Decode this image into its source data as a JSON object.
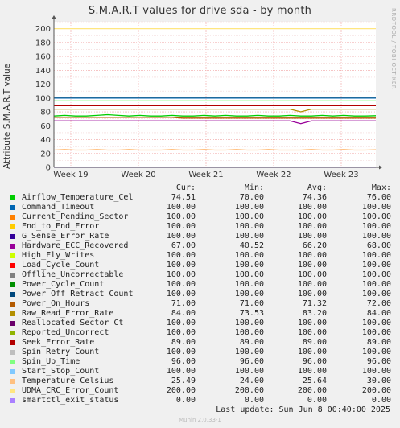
{
  "title": "S.M.A.R.T values for drive sda - by month",
  "side_tag": "RRDTOOL / TOBI OETIKER",
  "ylabel": "Attribute S.M.A.R.T value",
  "legend_headers": {
    "cur": "Cur:",
    "min": "Min:",
    "avg": "Avg:",
    "max": "Max:"
  },
  "last_update": "Last update:  Sun Jun  8 00:40:00 2025",
  "footer": "Munin 2.0.33-1",
  "chart_data": {
    "type": "line",
    "title": "S.M.A.R.T values for drive sda - by month",
    "ylabel": "Attribute S.M.A.R.T value",
    "ylim": [
      0,
      210
    ],
    "yticks": [
      0,
      20,
      40,
      60,
      80,
      100,
      120,
      140,
      160,
      180,
      200
    ],
    "x_ticks": [
      "Week 19",
      "Week 20",
      "Week 21",
      "Week 22",
      "Week 23"
    ],
    "grid": true,
    "series": [
      {
        "name": "Airflow_Temperature_Cel",
        "color": "#00cc00",
        "cur": "74.51",
        "min": "70.00",
        "avg": "74.36",
        "max": "76.00",
        "values": [
          74,
          75,
          74,
          74,
          75,
          76,
          75,
          74,
          75,
          74,
          74,
          75,
          74,
          74,
          75,
          74,
          75,
          74,
          74,
          75,
          74,
          74,
          75,
          74,
          74,
          75,
          74,
          75,
          74,
          74,
          74.5
        ]
      },
      {
        "name": "Command_Timeout",
        "color": "#0066b3",
        "cur": "100.00",
        "min": "100.00",
        "avg": "100.00",
        "max": "100.00",
        "values": [
          100
        ]
      },
      {
        "name": "Current_Pending_Sector",
        "color": "#ff8000",
        "cur": "100.00",
        "min": "100.00",
        "avg": "100.00",
        "max": "100.00",
        "values": [
          100
        ]
      },
      {
        "name": "End_to_End_Error",
        "color": "#ffcc00",
        "cur": "100.00",
        "min": "100.00",
        "avg": "100.00",
        "max": "100.00",
        "values": [
          100
        ]
      },
      {
        "name": "G_Sense_Error_Rate",
        "color": "#330099",
        "cur": "100.00",
        "min": "100.00",
        "avg": "100.00",
        "max": "100.00",
        "values": [
          100
        ]
      },
      {
        "name": "Hardware_ECC_Recovered",
        "color": "#990099",
        "cur": "67.00",
        "min": "40.52",
        "avg": "66.20",
        "max": "68.00",
        "values": [
          67,
          67,
          67,
          67,
          67,
          67,
          67,
          67,
          67,
          67,
          67,
          67,
          67,
          67,
          67,
          67,
          67,
          67,
          67,
          67,
          67,
          67,
          67,
          63,
          67,
          67,
          67,
          67,
          67,
          67,
          67
        ]
      },
      {
        "name": "High_Fly_Writes",
        "color": "#ccff00",
        "cur": "100.00",
        "min": "100.00",
        "avg": "100.00",
        "max": "100.00",
        "values": [
          100
        ]
      },
      {
        "name": "Load_Cycle_Count",
        "color": "#ff0000",
        "cur": "100.00",
        "min": "100.00",
        "avg": "100.00",
        "max": "100.00",
        "values": [
          100
        ]
      },
      {
        "name": "Offline_Uncorrectable",
        "color": "#808080",
        "cur": "100.00",
        "min": "100.00",
        "avg": "100.00",
        "max": "100.00",
        "values": [
          100
        ]
      },
      {
        "name": "Power_Cycle_Count",
        "color": "#008f00",
        "cur": "100.00",
        "min": "100.00",
        "avg": "100.00",
        "max": "100.00",
        "values": [
          100
        ]
      },
      {
        "name": "Power_Off_Retract_Count",
        "color": "#00487d",
        "cur": "100.00",
        "min": "100.00",
        "avg": "100.00",
        "max": "100.00",
        "values": [
          100
        ]
      },
      {
        "name": "Power_On_Hours",
        "color": "#b35a00",
        "cur": "71.00",
        "min": "71.00",
        "avg": "71.32",
        "max": "72.00",
        "values": [
          72,
          72,
          72,
          72,
          72,
          72,
          72,
          72,
          72,
          72,
          72,
          72,
          71,
          71,
          71,
          71,
          71,
          71,
          71,
          71,
          71,
          71,
          71,
          71,
          71,
          71,
          71,
          71,
          71,
          71,
          71
        ]
      },
      {
        "name": "Raw_Read_Error_Rate",
        "color": "#b38f00",
        "cur": "84.00",
        "min": "73.53",
        "avg": "83.20",
        "max": "84.00",
        "values": [
          84,
          84,
          84,
          84,
          84,
          84,
          84,
          84,
          84,
          84,
          84,
          84,
          84,
          84,
          84,
          84,
          84,
          84,
          84,
          84,
          84,
          84,
          84,
          80,
          84,
          84,
          84,
          84,
          84,
          84,
          84
        ]
      },
      {
        "name": "Reallocated_Sector_Ct",
        "color": "#6b006b",
        "cur": "100.00",
        "min": "100.00",
        "avg": "100.00",
        "max": "100.00",
        "values": [
          100
        ]
      },
      {
        "name": "Reported_Uncorrect",
        "color": "#8fb300",
        "cur": "100.00",
        "min": "100.00",
        "avg": "100.00",
        "max": "100.00",
        "values": [
          100
        ]
      },
      {
        "name": "Seek_Error_Rate",
        "color": "#b30000",
        "cur": "89.00",
        "min": "89.00",
        "avg": "89.00",
        "max": "89.00",
        "values": [
          89
        ]
      },
      {
        "name": "Spin_Retry_Count",
        "color": "#bebebe",
        "cur": "100.00",
        "min": "100.00",
        "avg": "100.00",
        "max": "100.00",
        "values": [
          100
        ]
      },
      {
        "name": "Spin_Up_Time",
        "color": "#80ff80",
        "cur": "96.00",
        "min": "96.00",
        "avg": "96.00",
        "max": "96.00",
        "values": [
          96
        ]
      },
      {
        "name": "Start_Stop_Count",
        "color": "#80c9ff",
        "cur": "100.00",
        "min": "100.00",
        "avg": "100.00",
        "max": "100.00",
        "values": [
          100
        ]
      },
      {
        "name": "Temperature_Celsius",
        "color": "#ffc080",
        "cur": "25.49",
        "min": "24.00",
        "avg": "25.64",
        "max": "30.00",
        "values": [
          25,
          26,
          25,
          25,
          26,
          25,
          25,
          26,
          25,
          25,
          25,
          26,
          25,
          25,
          26,
          25,
          25,
          26,
          25,
          25,
          26,
          25,
          25,
          25,
          26,
          25,
          25,
          26,
          25,
          25,
          25.5
        ]
      },
      {
        "name": "UDMA_CRC_Error_Count",
        "color": "#ffe680",
        "cur": "200.00",
        "min": "200.00",
        "avg": "200.00",
        "max": "200.00",
        "values": [
          200
        ]
      },
      {
        "name": "smartctl_exit_status",
        "color": "#aa80ff",
        "cur": "0.00",
        "min": "0.00",
        "avg": "0.00",
        "max": "0.00",
        "values": [
          0
        ]
      }
    ]
  }
}
